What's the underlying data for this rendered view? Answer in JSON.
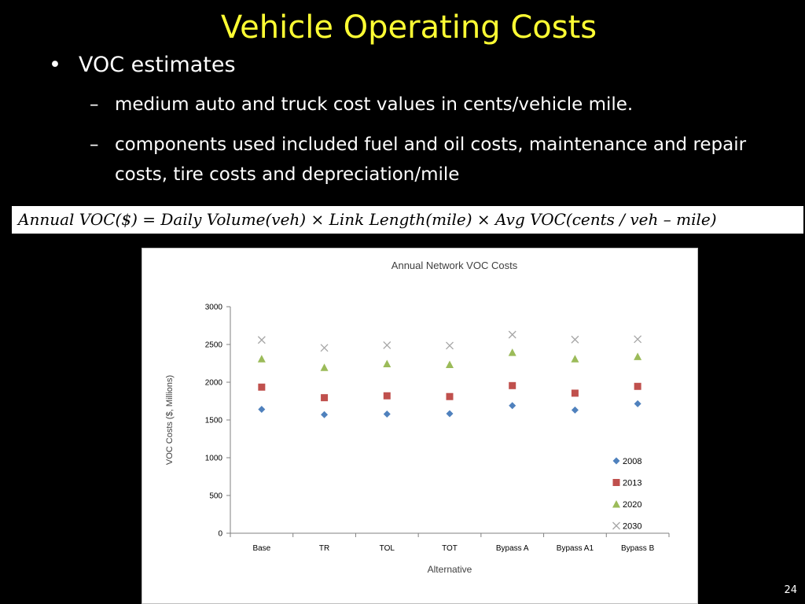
{
  "slide": {
    "title": "Vehicle Operating Costs",
    "bullet": "VOC estimates",
    "bullet_marker": "•",
    "sub_marker": "–",
    "sub_items": [
      "medium auto and truck cost values in cents/vehicle mile.",
      "components used included fuel and oil costs, maintenance and repair costs, tire costs and depreciation/mile"
    ],
    "formula": "Annual VOC($) = Daily Volume(veh) × Link Length(mile) × Avg VOC(cents / veh – mile)",
    "page_number": "24"
  },
  "chart_data": {
    "type": "scatter",
    "title": "Annual Network VOC Costs",
    "xlabel": "Alternative",
    "ylabel": "VOC Costs ($, Millions)",
    "ylim": [
      0,
      3000
    ],
    "yticks": [
      "0",
      "500",
      "1000",
      "1500",
      "2000",
      "2500",
      "3000"
    ],
    "categories": [
      "Base",
      "TR",
      "TOL",
      "TOT",
      "Bypass A",
      "Bypass A1",
      "Bypass B"
    ],
    "grid": false,
    "legend": "right-inside-bottom",
    "series": [
      {
        "name": "2008",
        "marker": "diamond",
        "color": "#4f81bd",
        "values": [
          1640,
          1570,
          1578,
          1583,
          1690,
          1632,
          1715
        ]
      },
      {
        "name": "2013",
        "marker": "square",
        "color": "#c0504d",
        "values": [
          1935,
          1795,
          1820,
          1810,
          1955,
          1855,
          1945
        ]
      },
      {
        "name": "2020",
        "marker": "triangle",
        "color": "#9bbb59",
        "values": [
          2310,
          2195,
          2245,
          2235,
          2395,
          2310,
          2340
        ]
      },
      {
        "name": "2030",
        "marker": "x",
        "color": "#a6a6a6",
        "values": [
          2560,
          2455,
          2490,
          2485,
          2630,
          2565,
          2570
        ]
      }
    ]
  }
}
